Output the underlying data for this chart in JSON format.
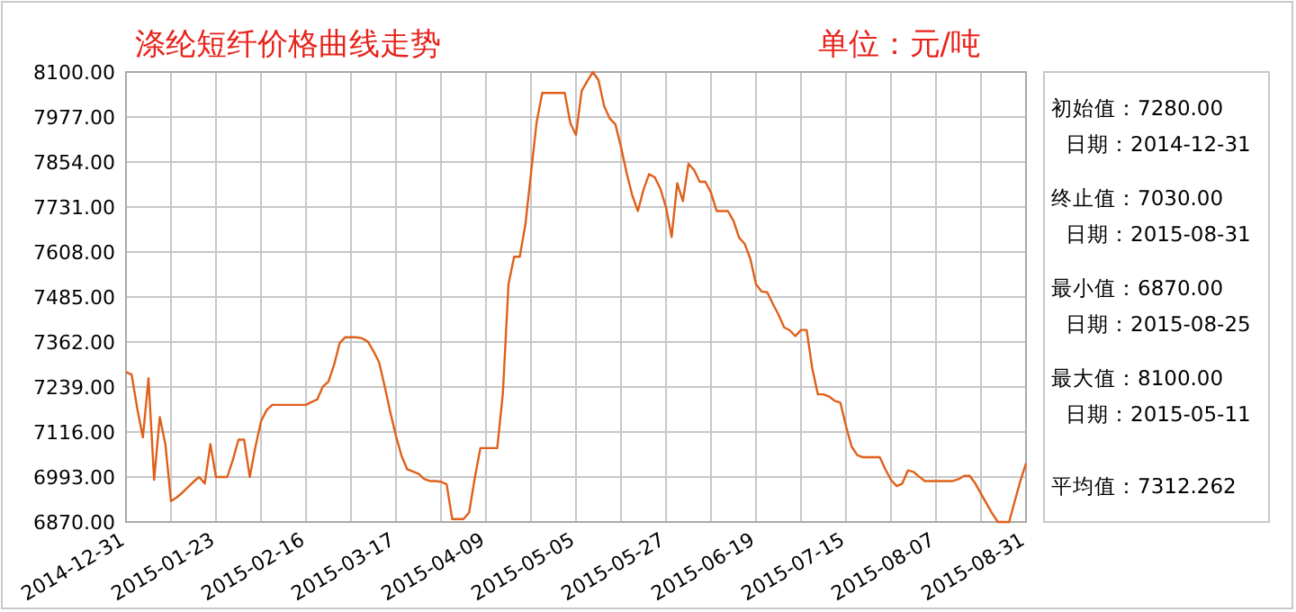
{
  "chart_data": {
    "type": "line",
    "title": "涤纶短纤价格曲线走势",
    "subtitle": "单位：元/吨",
    "annotations": [
      "初始值：7280.00",
      "日期：2014-12-31",
      "终止值：7030.00",
      "日期：2015-08-31",
      "最小值：6870.00",
      "日期：2015-08-25",
      "最大值：8100.00",
      "日期：2015-05-11",
      "平均值：7312.262"
    ],
    "categories": [
      "2014-12-31",
      null,
      null,
      null,
      null,
      null,
      null,
      null,
      null,
      null,
      null,
      null,
      null,
      null,
      null,
      null,
      "2015-01-23",
      null,
      null,
      null,
      null,
      null,
      null,
      null,
      null,
      null,
      null,
      null,
      null,
      null,
      null,
      null,
      "2015-02-16",
      null,
      null,
      null,
      null,
      null,
      null,
      null,
      null,
      null,
      null,
      null,
      null,
      null,
      null,
      null,
      "2015-03-17",
      null,
      null,
      null,
      null,
      null,
      null,
      null,
      null,
      null,
      null,
      null,
      null,
      null,
      null,
      null,
      "2015-04-09",
      null,
      null,
      null,
      null,
      null,
      null,
      null,
      null,
      null,
      null,
      null,
      null,
      null,
      null,
      null,
      "2015-05-05",
      null,
      null,
      null,
      null,
      null,
      null,
      null,
      null,
      null,
      null,
      null,
      null,
      null,
      null,
      null,
      "2015-05-27",
      null,
      null,
      null,
      null,
      null,
      null,
      null,
      null,
      null,
      null,
      null,
      null,
      null,
      null,
      null,
      "2015-06-19",
      null,
      null,
      null,
      null,
      null,
      null,
      null,
      null,
      null,
      null,
      null,
      null,
      null,
      null,
      null,
      "2015-07-15",
      null,
      null,
      null,
      null,
      null,
      null,
      null,
      null,
      null,
      null,
      null,
      null,
      null,
      null,
      null,
      "2015-08-07",
      null,
      null,
      null,
      null,
      null,
      null,
      null,
      null,
      null,
      null,
      null,
      null,
      null,
      null,
      null,
      "2015-08-31"
    ],
    "ylim": [
      6870,
      8100
    ],
    "yticks": [
      {
        "value": 6870,
        "label": "6870.00"
      },
      {
        "value": 6993,
        "label": "6993.00"
      },
      {
        "value": 7116,
        "label": "7116.00"
      },
      {
        "value": 7239,
        "label": "7239.00"
      },
      {
        "value": 7362,
        "label": "7362.00"
      },
      {
        "value": 7485,
        "label": "7485.00"
      },
      {
        "value": 7608,
        "label": "7608.00"
      },
      {
        "value": 7731,
        "label": "7731.00"
      },
      {
        "value": 7854,
        "label": "7854.00"
      },
      {
        "value": 7977,
        "label": "7977.00"
      },
      {
        "value": 8100,
        "label": "8100.00"
      }
    ],
    "grid": true,
    "marker": "none",
    "line_style": "solid",
    "series": [
      {
        "color": "#e0601a",
        "values": [
          7280,
          7273,
          7180,
          7101,
          7263,
          6985,
          7157,
          7083,
          6927,
          6937,
          6950,
          6965,
          6980,
          6993,
          6975,
          7083,
          6993,
          6993,
          6993,
          7040,
          7095,
          7095,
          6993,
          7075,
          7145,
          7176,
          7190,
          7190,
          7190,
          7190,
          7190,
          7190,
          7190,
          7198,
          7205,
          7240,
          7254,
          7300,
          7360,
          7375,
          7375,
          7375,
          7372,
          7363,
          7337,
          7306,
          7240,
          7169,
          7105,
          7050,
          7014,
          7008,
          7002,
          6988,
          6982,
          6982,
          6980,
          6973,
          6878,
          6878,
          6878,
          6896,
          6990,
          7072,
          7072,
          7072,
          7072,
          7222,
          7520,
          7595,
          7595,
          7683,
          7823,
          7963,
          8043,
          8043,
          8043,
          8043,
          8043,
          7960,
          7928,
          8048,
          8075,
          8100,
          8078,
          8007,
          7973,
          7957,
          7895,
          7824,
          7763,
          7720,
          7778,
          7821,
          7812,
          7781,
          7730,
          7649,
          7796,
          7747,
          7849,
          7832,
          7800,
          7800,
          7770,
          7720,
          7720,
          7720,
          7693,
          7647,
          7630,
          7589,
          7520,
          7500,
          7498,
          7466,
          7437,
          7402,
          7394,
          7378,
          7395,
          7395,
          7290,
          7219,
          7219,
          7213,
          7201,
          7196,
          7132,
          7076,
          7053,
          7047,
          7047,
          7047,
          7047,
          7014,
          6985,
          6968,
          6975,
          7011,
          7007,
          6994,
          6982,
          6982,
          6982,
          6982,
          6982,
          6982,
          6987,
          6996,
          6996,
          6975,
          6947,
          6920,
          6893,
          6870,
          6870,
          6870,
          6927,
          6982,
          7030
        ]
      }
    ]
  }
}
